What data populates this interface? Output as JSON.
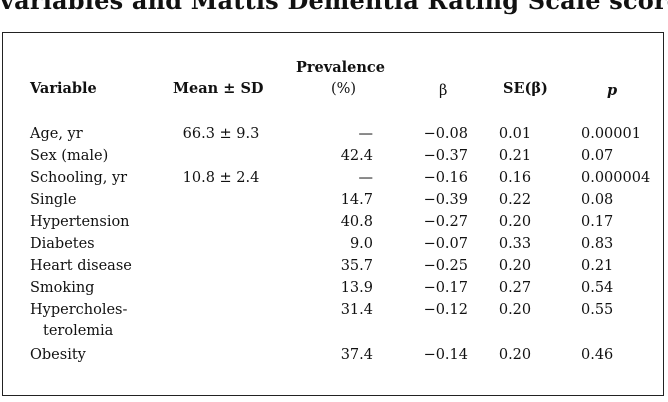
{
  "title": "variables and Mattis Dementia Rating Scale score",
  "headers": {
    "variable": "Variable",
    "mean_sd": "Mean ± SD",
    "prevalence_top": "Prevalence",
    "prevalence_unit": "(%)",
    "beta": "β",
    "se_beta": "SE(β)",
    "p": "p"
  },
  "rows": [
    {
      "variable": "Age, yr",
      "variable2": "",
      "mean_sd": "66.3 ± 9.3",
      "prevalence": "—",
      "beta": "−0.08",
      "se": "0.01",
      "p": "0.00001"
    },
    {
      "variable": "Sex (male)",
      "variable2": "",
      "mean_sd": "",
      "prevalence": "42.4",
      "beta": "−0.37",
      "se": "0.21",
      "p": "0.07"
    },
    {
      "variable": "Schooling, yr",
      "variable2": "",
      "mean_sd": "10.8 ± 2.4",
      "prevalence": "—",
      "beta": "−0.16",
      "se": "0.16",
      "p": "0.000004"
    },
    {
      "variable": "Single",
      "variable2": "",
      "mean_sd": "",
      "prevalence": "14.7",
      "beta": "−0.39",
      "se": "0.22",
      "p": "0.08"
    },
    {
      "variable": "Hypertension",
      "variable2": "",
      "mean_sd": "",
      "prevalence": "40.8",
      "beta": "−0.27",
      "se": "0.20",
      "p": "0.17"
    },
    {
      "variable": "Diabetes",
      "variable2": "",
      "mean_sd": "",
      "prevalence": "9.0",
      "beta": "−0.07",
      "se": "0.33",
      "p": "0.83"
    },
    {
      "variable": "Heart disease",
      "variable2": "",
      "mean_sd": "",
      "prevalence": "35.7",
      "beta": "−0.25",
      "se": "0.20",
      "p": "0.21"
    },
    {
      "variable": "Smoking",
      "variable2": "",
      "mean_sd": "",
      "prevalence": "13.9",
      "beta": "−0.17",
      "se": "0.27",
      "p": "0.54"
    },
    {
      "variable": "Hypercholes-",
      "variable2": "terolemia",
      "mean_sd": "",
      "prevalence": "31.4",
      "beta": "−0.12",
      "se": "0.20",
      "p": "0.55"
    },
    {
      "variable": "Obesity",
      "variable2": "",
      "mean_sd": "",
      "prevalence": "37.4",
      "beta": "−0.14",
      "se": "0.20",
      "p": "0.46"
    }
  ]
}
